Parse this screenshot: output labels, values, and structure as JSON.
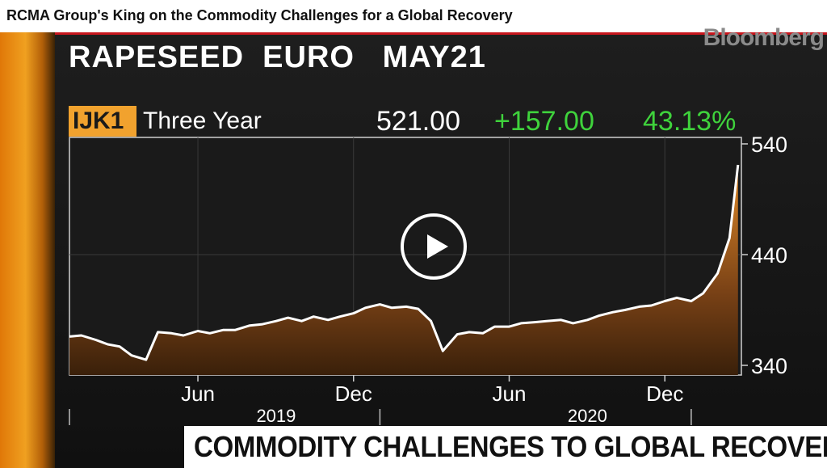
{
  "video_title": "RCMA Group's King on the Commodity Challenges for a Global Recovery",
  "brand": "Bloomberg",
  "instrument": "RAPESEED  EURO   MAY21",
  "ticker": "IJK1",
  "period": "Three Year",
  "last_price": "521.00",
  "net_change": "+157.00",
  "pct_change": "43.13%",
  "lower_third": "COMMODITY CHALLENGES TO GLOBAL RECOVERY",
  "colors": {
    "up": "#3fd33c",
    "ticker_bg": "#f1a22e",
    "accent_red": "#c8161d"
  },
  "icons": {
    "play": "play-icon"
  },
  "chart_data": {
    "type": "area",
    "title": "RAPESEED  EURO   MAY21",
    "ylim": [
      340,
      540
    ],
    "y_ticks": [
      "540",
      "440",
      "340"
    ],
    "x_ticks": [
      "Jun",
      "Dec",
      "Jun",
      "Dec"
    ],
    "x_tick_dates": [
      "2019-06-01",
      "2019-12-01",
      "2020-06-01",
      "2020-12-01"
    ],
    "year_labels": [
      "2019",
      "2020"
    ],
    "year_label_dates": [
      "2019-09-01",
      "2020-09-01"
    ],
    "grid": true,
    "series": [
      {
        "x": [
          "2019-01-01",
          "2019-01-15",
          "2019-02-01",
          "2019-02-15",
          "2019-03-01",
          "2019-03-15",
          "2019-04-01",
          "2019-04-15",
          "2019-05-01",
          "2019-05-15",
          "2019-06-01",
          "2019-06-15",
          "2019-07-01",
          "2019-07-15",
          "2019-08-01",
          "2019-08-15",
          "2019-09-01",
          "2019-09-15",
          "2019-10-01",
          "2019-10-15",
          "2019-11-01",
          "2019-11-15",
          "2019-12-01",
          "2019-12-15",
          "2020-01-01",
          "2020-01-15",
          "2020-02-01",
          "2020-02-15",
          "2020-03-01",
          "2020-03-15",
          "2020-04-01",
          "2020-04-15",
          "2020-05-01",
          "2020-05-15",
          "2020-06-01",
          "2020-06-15",
          "2020-07-01",
          "2020-07-15",
          "2020-08-01",
          "2020-08-15",
          "2020-09-01",
          "2020-09-15",
          "2020-10-01",
          "2020-10-15",
          "2020-11-01",
          "2020-11-15",
          "2020-12-01",
          "2020-12-15",
          "2021-01-01",
          "2021-01-15",
          "2021-02-01",
          "2021-02-15",
          "2021-02-25"
        ],
        "values": [
          366,
          367,
          363,
          359,
          357,
          349,
          345,
          370,
          369,
          367,
          371,
          369,
          372,
          372,
          376,
          377,
          380,
          383,
          380,
          384,
          381,
          384,
          387,
          392,
          395,
          392,
          393,
          391,
          380,
          353,
          368,
          370,
          369,
          375,
          375,
          378,
          379,
          380,
          381,
          378,
          381,
          385,
          388,
          390,
          393,
          394,
          398,
          401,
          398,
          405,
          423,
          455,
          521
        ]
      }
    ]
  }
}
